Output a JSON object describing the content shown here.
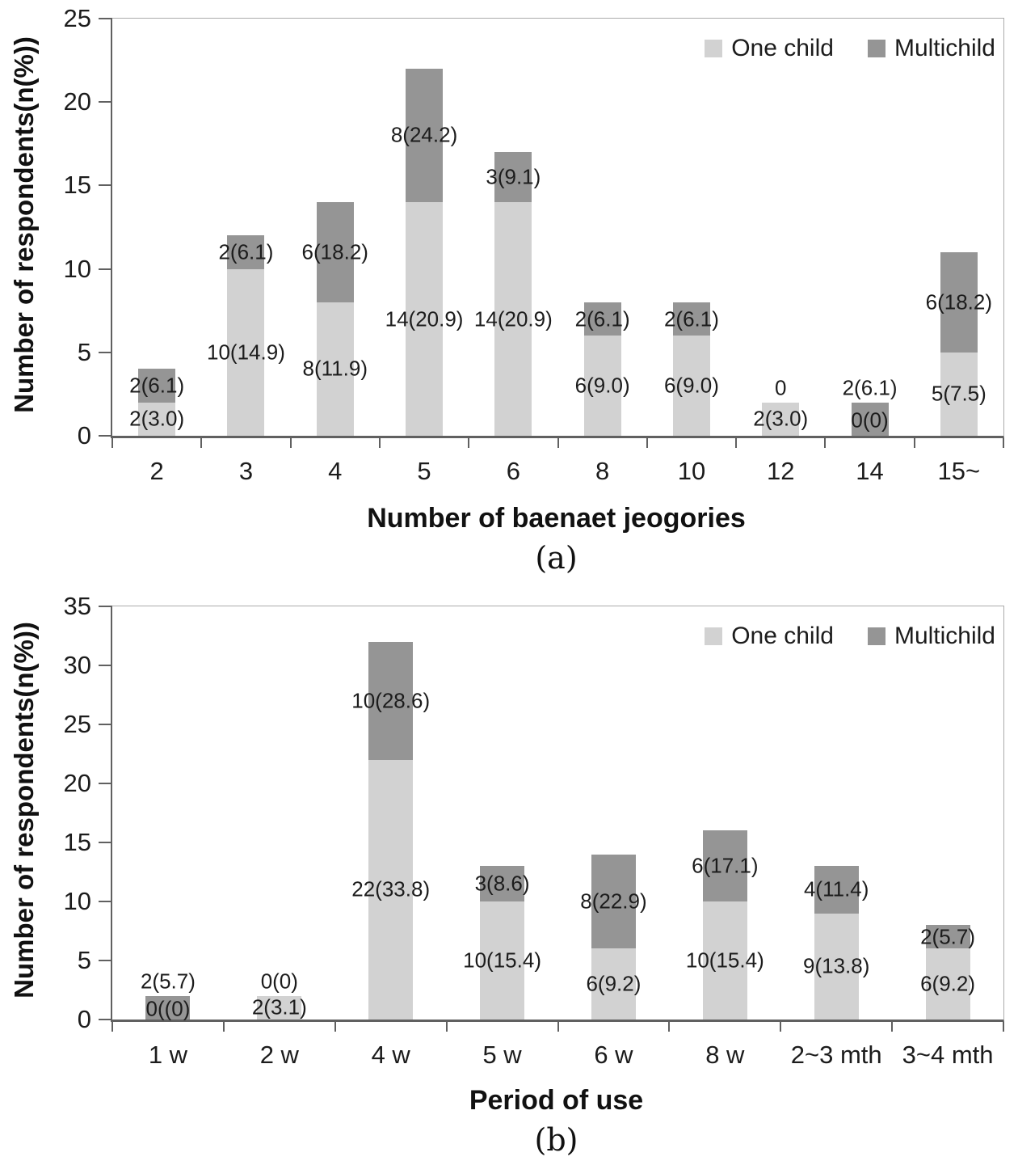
{
  "chart_data": [
    {
      "type": "bar",
      "stacked": true,
      "title": "",
      "xlabel": "Number of baenaet jeogories",
      "ylabel": "Number of respondents(n(%))",
      "caption": "(a)",
      "ylim": [
        0,
        25
      ],
      "ytick_step": 5,
      "yticks": [
        0,
        5,
        10,
        15,
        20,
        25
      ],
      "grid": false,
      "legend_position": "top-right",
      "categories": [
        "2",
        "3",
        "4",
        "5",
        "6",
        "8",
        "10",
        "12",
        "14",
        "15~"
      ],
      "series": [
        {
          "name": "One child",
          "color": "#d2d2d2",
          "values": [
            2,
            10,
            8,
            14,
            14,
            6,
            6,
            2,
            0,
            5
          ],
          "labels": [
            "2(3.0)",
            "10(14.9)",
            "8(11.9)",
            "14(20.9)",
            "14(20.9)",
            "6(9.0)",
            "6(9.0)",
            "2(3.0)",
            "0(0)",
            "5(7.5)"
          ]
        },
        {
          "name": "Multichild",
          "color": "#959595",
          "values": [
            2,
            2,
            6,
            8,
            3,
            2,
            2,
            0,
            2,
            6
          ],
          "labels": [
            "2(6.1)",
            "2(6.1)",
            "6(18.2)",
            "8(24.2)",
            "3(9.1)",
            "2(6.1)",
            "2(6.1)",
            "0",
            "2(6.1)",
            "6(18.2)"
          ]
        }
      ]
    },
    {
      "type": "bar",
      "stacked": true,
      "title": "",
      "xlabel": "Period of use",
      "ylabel": "Number of respondents(n(%))",
      "caption": "(b)",
      "ylim": [
        0,
        35
      ],
      "ytick_step": 5,
      "yticks": [
        0,
        5,
        10,
        15,
        20,
        25,
        30,
        35
      ],
      "grid": false,
      "legend_position": "top-right",
      "categories": [
        "1 w",
        "2 w",
        "4 w",
        "5 w",
        "6 w",
        "8 w",
        "2~3 mth",
        "3~4 mth"
      ],
      "series": [
        {
          "name": "One child",
          "color": "#d2d2d2",
          "values": [
            0,
            2,
            22,
            10,
            6,
            10,
            9,
            6
          ],
          "labels": [
            "0((0)",
            "2(3.1)",
            "22(33.8)",
            "10(15.4)",
            "6(9.2)",
            "10(15.4)",
            "9(13.8)",
            "6(9.2)"
          ]
        },
        {
          "name": "Multichild",
          "color": "#959595",
          "values": [
            2,
            0,
            10,
            3,
            8,
            6,
            4,
            2
          ],
          "labels": [
            "2(5.7)",
            "0(0)",
            "10(28.6)",
            "3(8.6)",
            "8(22.9)",
            "6(17.1)",
            "4(11.4)",
            "2(5.7)"
          ]
        }
      ]
    }
  ]
}
